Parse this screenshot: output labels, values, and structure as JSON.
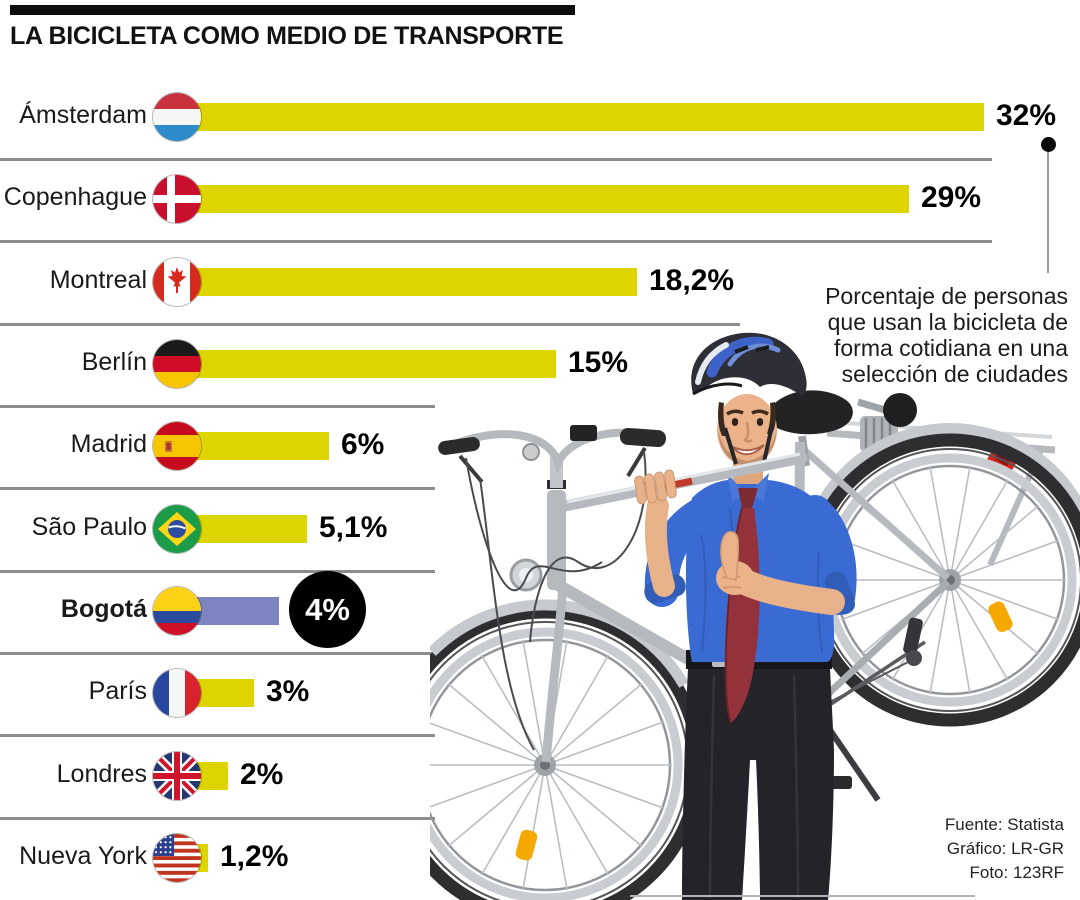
{
  "title": "LA BICICLETA COMO MEDIO DE TRANSPORTE",
  "annotation": {
    "lines": [
      "Porcentaje de personas",
      "que usan la bicicleta de",
      "forma cotidiana en una",
      "selección de ciudades"
    ]
  },
  "credits": [
    "Fuente: Statista",
    "Gráfico: LR-GR",
    "Foto: 123RF"
  ],
  "colors": {
    "bar": "#ddd400",
    "highlight_bar": "#7d84bf",
    "highlight_badge": "#000000",
    "separator": "#8d8d8d",
    "title_bar": "#0d0d0d"
  },
  "chart_data": {
    "type": "bar",
    "orientation": "horizontal",
    "title": "LA BICICLETA COMO MEDIO DE TRANSPORTE",
    "unit": "%",
    "xlim": [
      0,
      32
    ],
    "grid": false,
    "categories": [
      "Ámsterdam",
      "Copenhague",
      "Montreal",
      "Berlín",
      "Madrid",
      "São Paulo",
      "Bogotá",
      "París",
      "Londres",
      "Nueva York"
    ],
    "values": [
      32,
      29,
      18.2,
      15,
      6,
      5.1,
      4,
      3,
      2,
      1.2
    ],
    "rows": [
      {
        "city": "Ámsterdam",
        "value": 32,
        "label": "32%",
        "flag": "netherlands",
        "highlight": false
      },
      {
        "city": "Copenhague",
        "value": 29,
        "label": "29%",
        "flag": "denmark",
        "highlight": false
      },
      {
        "city": "Montreal",
        "value": 18.2,
        "label": "18,2%",
        "flag": "canada",
        "highlight": false
      },
      {
        "city": "Berlín",
        "value": 15,
        "label": "15%",
        "flag": "germany",
        "highlight": false
      },
      {
        "city": "Madrid",
        "value": 6,
        "label": "6%",
        "flag": "spain",
        "highlight": false
      },
      {
        "city": "São Paulo",
        "value": 5.1,
        "label": "5,1%",
        "flag": "brazil",
        "highlight": false
      },
      {
        "city": "Bogotá",
        "value": 4,
        "label": "4%",
        "flag": "colombia",
        "highlight": true
      },
      {
        "city": "París",
        "value": 3,
        "label": "3%",
        "flag": "france",
        "highlight": false
      },
      {
        "city": "Londres",
        "value": 2,
        "label": "2%",
        "flag": "uk",
        "highlight": false
      },
      {
        "city": "Nueva York",
        "value": 1.2,
        "label": "1,2%",
        "flag": "usa",
        "highlight": false
      }
    ]
  }
}
